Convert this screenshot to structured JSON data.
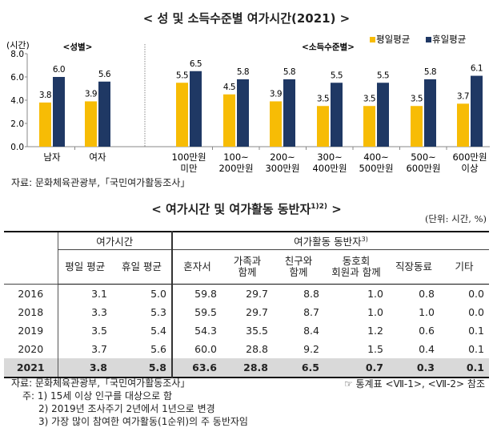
{
  "chart_title": "< 성 및 소득수준별 여가시간(2021) >",
  "chart_data": {
    "type": "bar",
    "title": "< 성 및 소득수준별 여가시간(2021) >",
    "ylabel": "(시간)",
    "ylim": [
      0,
      8
    ],
    "yticks": [
      "0.0",
      "2.0",
      "4.0",
      "6.0",
      "8.0"
    ],
    "group_labels": [
      "<성별>",
      "<소득수준별>"
    ],
    "categories": [
      [
        "남자"
      ],
      [
        "여자"
      ],
      [
        "100만원",
        "미만"
      ],
      [
        "100~",
        "200만원"
      ],
      [
        "200~",
        "300만원"
      ],
      [
        "300~",
        "400만원"
      ],
      [
        "400~",
        "500만원"
      ],
      [
        "500~",
        "600만원"
      ],
      [
        "600만원",
        "이상"
      ]
    ],
    "series": [
      {
        "name": "평일평균",
        "color": "#F7BC05",
        "values": [
          3.8,
          3.9,
          5.5,
          4.5,
          3.9,
          3.5,
          3.5,
          3.5,
          3.7
        ]
      },
      {
        "name": "휴일평균",
        "color": "#1F3864",
        "values": [
          6.0,
          5.6,
          6.5,
          5.8,
          5.8,
          5.5,
          5.5,
          5.8,
          6.1
        ]
      }
    ],
    "legend": "top-right"
  },
  "chart_source": "자료: 문화체육관광부,「국민여가활동조사」",
  "table": {
    "title": "< 여가시간 및 여가활동 동반자",
    "title_sup": "1)2)",
    "title_end": " >",
    "unit": "(단위: 시간, %)",
    "group1": "여가시간",
    "group2": "여가활동 동반자",
    "group2_sup": "3)",
    "columns": [
      [
        "평일 평균"
      ],
      [
        "휴일 평균"
      ],
      [
        "혼자서"
      ],
      [
        "가족과",
        "함께"
      ],
      [
        "친구와",
        "함께"
      ],
      [
        "동호회",
        "회원과 함께"
      ],
      [
        "직장동료"
      ],
      [
        "기타"
      ]
    ],
    "rows": [
      {
        "year": "2016",
        "values": [
          "3.1",
          "5.0",
          "59.8",
          "29.7",
          "8.8",
          "1.0",
          "0.8",
          "0.0"
        ]
      },
      {
        "year": "2018",
        "values": [
          "3.3",
          "5.3",
          "59.5",
          "29.7",
          "8.7",
          "1.0",
          "1.0",
          "0.0"
        ]
      },
      {
        "year": "2019",
        "values": [
          "3.5",
          "5.4",
          "54.3",
          "35.5",
          "8.4",
          "1.2",
          "0.6",
          "0.1"
        ]
      },
      {
        "year": "2020",
        "values": [
          "3.7",
          "5.6",
          "60.0",
          "28.8",
          "9.2",
          "1.5",
          "0.4",
          "0.1"
        ]
      },
      {
        "year": "2021",
        "values": [
          "3.8",
          "5.8",
          "63.6",
          "28.8",
          "6.5",
          "0.7",
          "0.3",
          "0.1"
        ]
      }
    ]
  },
  "footer": {
    "source": "자료: 문화체육관광부,「국민여가활동조사」",
    "ref": "☞ 통계표 <Ⅶ-1>, <Ⅶ-2> 참조",
    "notes": [
      "주: 1) 15세 이상 인구를 대상으로 함",
      "2) 2019년 조사주기 2년에서 1년으로 변경",
      "3) 가장 많이 참여한 여가활동(1순위)의 주 동반자임"
    ]
  }
}
